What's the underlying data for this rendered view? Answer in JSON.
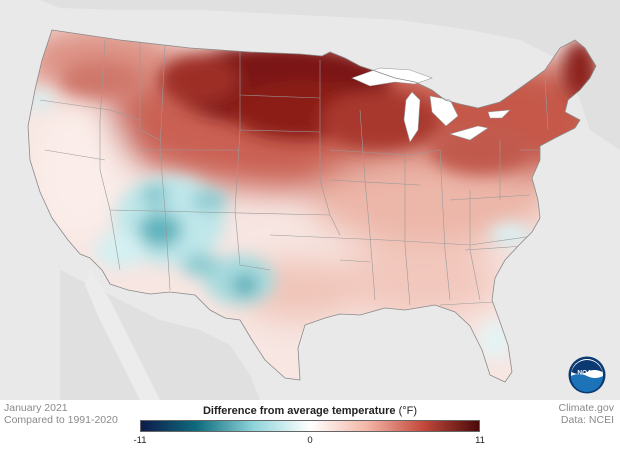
{
  "caption": {
    "date": "January 2021",
    "baseline": "Compared to 1991-2020"
  },
  "credits": {
    "source": "Climate.gov",
    "data": "Data: NCEI"
  },
  "legend": {
    "title": "Difference from average temperature",
    "unit": "(°F)",
    "min_label": "-11",
    "mid_label": "0",
    "max_label": "11",
    "range": [
      -11,
      11
    ],
    "colors": [
      "#0d1b4a",
      "#0f6d7f",
      "#8ed4da",
      "#ffffff",
      "#f3b7a8",
      "#c44a3c",
      "#4a0a0a"
    ]
  },
  "logo": {
    "text": "NOAA",
    "colors": [
      "#1d73b8",
      "#0b3a73",
      "#ffffff"
    ]
  },
  "map": {
    "background_color": "#e9e9e9",
    "land_color": "#f2f2f2",
    "water_color": "#ffffff",
    "regions": [
      {
        "name": "northern-plains",
        "anomaly": 10
      },
      {
        "name": "upper-midwest",
        "anomaly": 8
      },
      {
        "name": "northeast",
        "anomaly": 6
      },
      {
        "name": "southwest",
        "anomaly": -3
      },
      {
        "name": "southeast",
        "anomaly": 2
      },
      {
        "name": "west-coast",
        "anomaly": 1
      }
    ]
  }
}
